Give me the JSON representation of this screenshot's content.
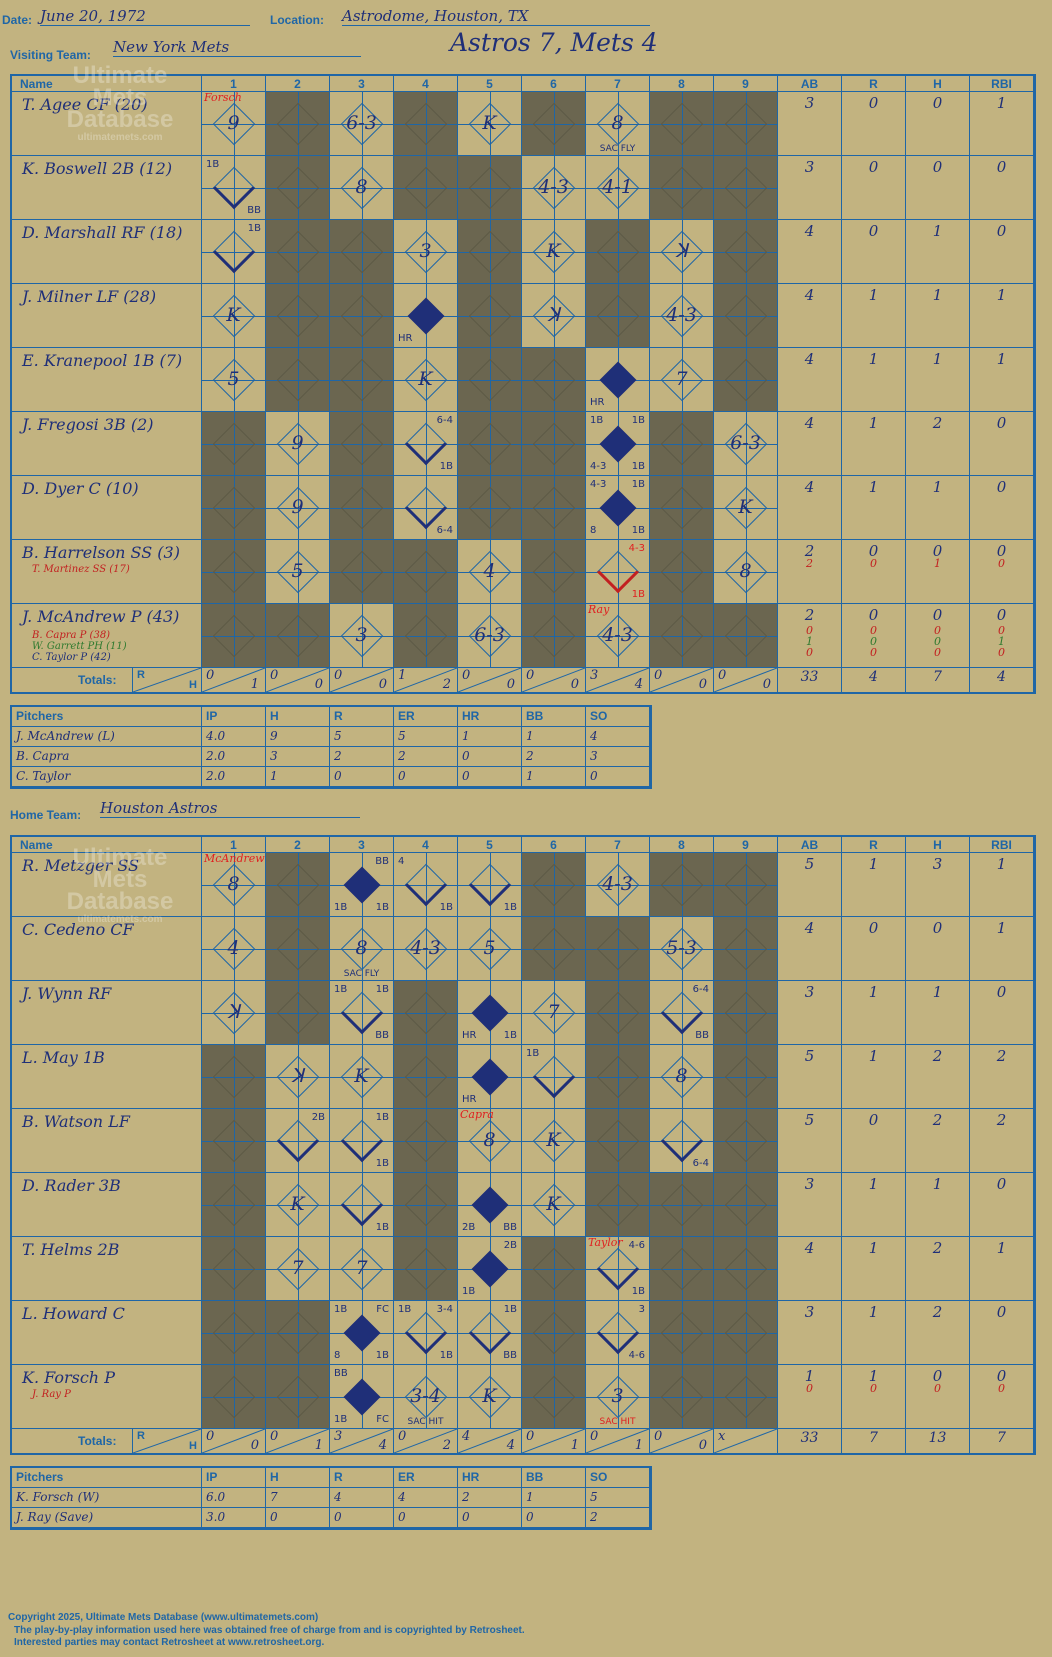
{
  "header": {
    "date_label": "Date:",
    "date": "June 20, 1972",
    "location_label": "Location:",
    "location": "Astrodome, Houston, TX",
    "visiting_label": "Visiting Team:",
    "visiting_team": "New York Mets",
    "title": "Astros 7, Mets 4",
    "home_label": "Home Team:",
    "home_team": "Houston Astros"
  },
  "columns": [
    "Name",
    "1",
    "2",
    "3",
    "4",
    "5",
    "6",
    "7",
    "8",
    "9",
    "AB",
    "R",
    "H",
    "RBI"
  ],
  "totals_label": "Totals:",
  "totals_r": "R",
  "totals_h": "H",
  "logo": {
    "line1": "Ultimate",
    "line2": "Mets",
    "line3": "Database",
    "line4": "ultimatemets.com"
  },
  "visitors": {
    "rows": [
      {
        "name": "T. Agee CF (20)",
        "stats": [
          "3",
          "0",
          "0",
          "1"
        ]
      },
      {
        "name": "K. Boswell 2B (12)",
        "stats": [
          "3",
          "0",
          "0",
          "0"
        ]
      },
      {
        "name": "D. Marshall RF (18)",
        "stats": [
          "4",
          "0",
          "1",
          "0"
        ]
      },
      {
        "name": "J. Milner LF (28)",
        "stats": [
          "4",
          "1",
          "1",
          "1"
        ]
      },
      {
        "name": "E. Kranepool 1B (7)",
        "stats": [
          "4",
          "1",
          "1",
          "1"
        ]
      },
      {
        "name": "J. Fregosi 3B (2)",
        "stats": [
          "4",
          "1",
          "2",
          "0"
        ]
      },
      {
        "name": "D. Dyer C (10)",
        "stats": [
          "4",
          "1",
          "1",
          "0"
        ]
      },
      {
        "name": "B. Harrelson SS (3)",
        "stats": [
          "2",
          "0",
          "0",
          "0"
        ],
        "subs": [
          {
            "name": "T. Martinez SS (17)",
            "stats": [
              "2",
              "0",
              "1",
              "0"
            ],
            "color": "red"
          }
        ]
      },
      {
        "name": "J. McAndrew P (43)",
        "stats": [
          "2",
          "0",
          "0",
          "0"
        ],
        "subs": [
          {
            "name": "B. Capra P (38)",
            "stats": [
              "0",
              "0",
              "0",
              "0"
            ],
            "color": "red"
          },
          {
            "name": "W. Garrett PH (11)",
            "stats": [
              "1",
              "0",
              "0",
              "1"
            ],
            "color": "green"
          },
          {
            "name": "C. Taylor P (42)",
            "stats": [
              "0",
              "0",
              "0",
              "0"
            ],
            "color": "darkblue"
          }
        ]
      }
    ],
    "plays": [
      [
        {
          "t": "9",
          "p": "Forsch"
        },
        {
          "s": 1
        },
        {
          "t": "6-3"
        },
        {
          "s": 1
        },
        {
          "t": "K"
        },
        {
          "s": 1
        },
        {
          "t": "8",
          "bc": "SAC FLY"
        },
        {
          "s": 1
        },
        {
          "s": 1
        }
      ],
      [
        {
          "d": "adv",
          "tl": "1B",
          "br": "BB"
        },
        {
          "s": 1
        },
        {
          "t": "8"
        },
        {
          "s": 1
        },
        {
          "s": 1
        },
        {
          "t": "4-3"
        },
        {
          "t": "4-1"
        },
        {
          "s": 1
        },
        {
          "s": 1
        }
      ],
      [
        {
          "d": "adv",
          "tr": "1B"
        },
        {
          "s": 1
        },
        {
          "s": 1
        },
        {
          "t": "3"
        },
        {
          "s": 1
        },
        {
          "t": "K"
        },
        {
          "s": 1
        },
        {
          "t": "ꓘ"
        },
        {
          "s": 1
        }
      ],
      [
        {
          "t": "K"
        },
        {
          "s": 1
        },
        {
          "s": 1
        },
        {
          "d": "scored",
          "bl": "HR"
        },
        {
          "s": 1
        },
        {
          "t": "ꓘ"
        },
        {
          "s": 1
        },
        {
          "t": "4-3"
        },
        {
          "s": 1
        }
      ],
      [
        {
          "t": "5"
        },
        {
          "s": 1
        },
        {
          "s": 1
        },
        {
          "t": "K"
        },
        {
          "s": 1
        },
        {
          "s": 1
        },
        {
          "d": "scored",
          "bl": "HR"
        },
        {
          "t": "7"
        },
        {
          "s": 1
        }
      ],
      [
        {
          "s": 1
        },
        {
          "t": "9"
        },
        {
          "s": 1
        },
        {
          "d": "adv",
          "tr": "6-4",
          "br": "1B"
        },
        {
          "s": 1
        },
        {
          "s": 1
        },
        {
          "d": "scored",
          "tl": "1B",
          "tr": "1B",
          "bl": "4-3",
          "br": "1B"
        },
        {
          "s": 1
        },
        {
          "t": "6-3"
        }
      ],
      [
        {
          "s": 1
        },
        {
          "t": "9"
        },
        {
          "s": 1
        },
        {
          "d": "adv",
          "br": "6-4"
        },
        {
          "s": 1
        },
        {
          "s": 1
        },
        {
          "d": "scored",
          "tl": "4-3",
          "tr": "1B",
          "bl": "8",
          "br": "1B"
        },
        {
          "s": 1
        },
        {
          "t": "K"
        }
      ],
      [
        {
          "s": 1
        },
        {
          "t": "5"
        },
        {
          "s": 1
        },
        {
          "s": 1
        },
        {
          "t": "4"
        },
        {
          "s": 1
        },
        {
          "d": "adv",
          "tr": "4-3",
          "br": "1B",
          "red": 1
        },
        {
          "s": 1
        },
        {
          "t": "8",
          "red": 1
        }
      ],
      [
        {
          "s": 1
        },
        {
          "s": 1
        },
        {
          "t": "3"
        },
        {
          "s": 1
        },
        {
          "t": "6-3"
        },
        {
          "s": 1
        },
        {
          "t": "4-3",
          "p": "Ray",
          "green": 1
        },
        {
          "s": 1
        },
        {
          "s": 1
        }
      ]
    ],
    "totals": [
      [
        "0",
        "1"
      ],
      [
        "0",
        "0"
      ],
      [
        "0",
        "0"
      ],
      [
        "1",
        "2"
      ],
      [
        "0",
        "0"
      ],
      [
        "0",
        "0"
      ],
      [
        "3",
        "4"
      ],
      [
        "0",
        "0"
      ],
      [
        "0",
        "0"
      ]
    ],
    "totals_stats": [
      "33",
      "4",
      "7",
      "4"
    ],
    "pitchers": {
      "headers": [
        "Pitchers",
        "IP",
        "H",
        "R",
        "ER",
        "HR",
        "BB",
        "SO"
      ],
      "rows": [
        [
          "J. McAndrew (L)",
          "4.0",
          "9",
          "5",
          "5",
          "1",
          "1",
          "4"
        ],
        [
          "B. Capra",
          "2.0",
          "3",
          "2",
          "2",
          "0",
          "2",
          "3"
        ],
        [
          "C. Taylor",
          "2.0",
          "1",
          "0",
          "0",
          "0",
          "1",
          "0"
        ]
      ]
    }
  },
  "home": {
    "rows": [
      {
        "name": "R. Metzger SS",
        "stats": [
          "5",
          "1",
          "3",
          "1"
        ]
      },
      {
        "name": "C. Cedeno CF",
        "stats": [
          "4",
          "0",
          "0",
          "1"
        ]
      },
      {
        "name": "J. Wynn RF",
        "stats": [
          "3",
          "1",
          "1",
          "0"
        ]
      },
      {
        "name": "L. May 1B",
        "stats": [
          "5",
          "1",
          "2",
          "2"
        ]
      },
      {
        "name": "B. Watson LF",
        "stats": [
          "5",
          "0",
          "2",
          "2"
        ]
      },
      {
        "name": "D. Rader 3B",
        "stats": [
          "3",
          "1",
          "1",
          "0"
        ]
      },
      {
        "name": "T. Helms 2B",
        "stats": [
          "4",
          "1",
          "2",
          "1"
        ]
      },
      {
        "name": "L. Howard C",
        "stats": [
          "3",
          "1",
          "2",
          "0"
        ]
      },
      {
        "name": "K. Forsch P",
        "stats": [
          "1",
          "1",
          "0",
          "0"
        ],
        "subs": [
          {
            "name": "J. Ray P",
            "stats": [
              "0",
              "0",
              "0",
              "0"
            ],
            "color": "red"
          }
        ]
      }
    ],
    "plays": [
      [
        {
          "t": "8",
          "p": "McAndrew"
        },
        {
          "s": 1
        },
        {
          "d": "scored",
          "tr": "BB",
          "bl": "1B",
          "br": "1B"
        },
        {
          "d": "adv",
          "tl": "4",
          "br": "1B"
        },
        {
          "d": "adv",
          "br": "1B"
        },
        {
          "s": 1
        },
        {
          "t": "4-3"
        },
        {
          "s": 1
        },
        {
          "s": 1
        }
      ],
      [
        {
          "t": "4"
        },
        {
          "s": 1
        },
        {
          "t": "8",
          "bc": "SAC FLY"
        },
        {
          "t": "4-3"
        },
        {
          "t": "5"
        },
        {
          "s": 1
        },
        {
          "s": 1
        },
        {
          "t": "5-3"
        },
        {
          "s": 1
        }
      ],
      [
        {
          "t": "ꓘ"
        },
        {
          "s": 1
        },
        {
          "d": "adv",
          "tl": "1B",
          "tr": "1B",
          "br": "BB"
        },
        {
          "s": 1
        },
        {
          "d": "scored",
          "bl": "HR",
          "br": "1B"
        },
        {
          "t": "7"
        },
        {
          "s": 1
        },
        {
          "d": "adv",
          "tr": "6-4",
          "br": "BB"
        },
        {
          "s": 1
        }
      ],
      [
        {
          "s": 1
        },
        {
          "t": "ꓘ"
        },
        {
          "t": "K"
        },
        {
          "s": 1
        },
        {
          "d": "scored",
          "bl": "HR"
        },
        {
          "d": "adv",
          "tl": "1B"
        },
        {
          "s": 1
        },
        {
          "t": "8"
        },
        {
          "s": 1
        }
      ],
      [
        {
          "s": 1
        },
        {
          "d": "adv",
          "tr": "2B"
        },
        {
          "d": "adv",
          "tr": "1B",
          "br": "1B"
        },
        {
          "s": 1
        },
        {
          "t": "8",
          "p": "Capra"
        },
        {
          "t": "K"
        },
        {
          "s": 1
        },
        {
          "d": "adv",
          "br": "6-4"
        },
        {
          "s": 1
        }
      ],
      [
        {
          "s": 1
        },
        {
          "t": "K"
        },
        {
          "d": "adv",
          "br": "1B"
        },
        {
          "s": 1
        },
        {
          "d": "scored",
          "bl": "2B",
          "br": "BB"
        },
        {
          "t": "K"
        },
        {
          "s": 1
        },
        {
          "s": 1
        },
        {
          "s": 1
        }
      ],
      [
        {
          "s": 1
        },
        {
          "t": "7"
        },
        {
          "t": "7"
        },
        {
          "s": 1
        },
        {
          "d": "scored",
          "tr": "2B",
          "bl": "1B"
        },
        {
          "s": 1
        },
        {
          "d": "adv",
          "p": "Taylor",
          "tr": "4-6",
          "br": "1B"
        },
        {
          "s": 1
        },
        {
          "s": 1
        }
      ],
      [
        {
          "s": 1
        },
        {
          "s": 1
        },
        {
          "d": "scored",
          "tl": "1B",
          "tr": "FC",
          "bl": "8",
          "br": "1B"
        },
        {
          "d": "adv",
          "tl": "1B",
          "tr": "3-4",
          "br": "1B"
        },
        {
          "d": "adv",
          "tr": "1B",
          "br": "BB"
        },
        {
          "s": 1
        },
        {
          "d": "adv",
          "tr": "3",
          "br": "4-6"
        },
        {
          "s": 1
        },
        {
          "s": 1
        }
      ],
      [
        {
          "s": 1
        },
        {
          "s": 1
        },
        {
          "d": "scored",
          "tl": "BB",
          "bl": "1B",
          "br": "FC"
        },
        {
          "t": "3-4",
          "bc": "SAC HIT"
        },
        {
          "t": "K"
        },
        {
          "s": 1
        },
        {
          "t": "3",
          "bc": "SAC HIT",
          "red": 1
        },
        {
          "s": 1
        },
        {
          "s": 1
        }
      ]
    ],
    "totals": [
      [
        "0",
        "0"
      ],
      [
        "0",
        "1"
      ],
      [
        "3",
        "4"
      ],
      [
        "0",
        "2"
      ],
      [
        "4",
        "4"
      ],
      [
        "0",
        "1"
      ],
      [
        "0",
        "1"
      ],
      [
        "0",
        "0"
      ],
      [
        "x",
        ""
      ]
    ],
    "totals_stats": [
      "33",
      "7",
      "13",
      "7"
    ],
    "pitchers": {
      "headers": [
        "Pitchers",
        "IP",
        "H",
        "R",
        "ER",
        "HR",
        "BB",
        "SO"
      ],
      "rows": [
        [
          "K. Forsch (W)",
          "6.0",
          "7",
          "4",
          "4",
          "2",
          "1",
          "5"
        ],
        [
          "J. Ray (Save)",
          "3.0",
          "0",
          "0",
          "0",
          "0",
          "0",
          "2"
        ]
      ]
    }
  },
  "footer": {
    "line1": "Copyright 2025, Ultimate Mets Database (www.ultimatemets.com)",
    "line2": "The play-by-play information used here was obtained free of charge from and is copyrighted by Retrosheet.",
    "line3": "Interested parties may contact Retrosheet at www.retrosheet.org."
  },
  "colors": {
    "background": "#c2b380",
    "grid": "#1f66a6",
    "ink": "#1f2f78",
    "shade": "#6b6650",
    "red": "#c22020",
    "green": "#2f7a2f"
  }
}
